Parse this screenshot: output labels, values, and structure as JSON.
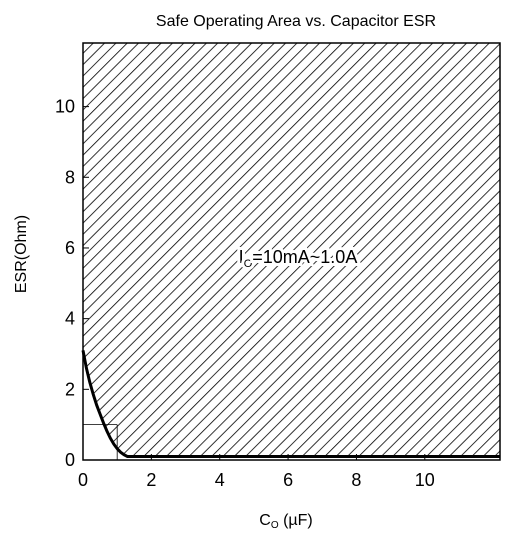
{
  "chart_data": {
    "type": "area",
    "title": "Safe Operating Area vs. Capacitor ESR",
    "xlabel_main": "C",
    "xlabel_sub": "O",
    "xlabel_unit": " (µF)",
    "ylabel": "ESR(Ohm)",
    "xlim": [
      0,
      12.2
    ],
    "ylim": [
      0,
      11.8
    ],
    "x_ticks": [
      0,
      2,
      4,
      6,
      8,
      10
    ],
    "y_ticks": [
      0,
      2,
      4,
      6,
      8,
      10
    ],
    "grid": false,
    "region": {
      "fill": "diagonal-hatch",
      "label_main": "I",
      "label_sub": "O",
      "label_rest": "=10mA~1.0A"
    },
    "boundary_curve": {
      "x": [
        0.0,
        0.1,
        0.2,
        0.3,
        0.4,
        0.5,
        0.6,
        0.7,
        0.8,
        0.9,
        1.0,
        1.1,
        1.2,
        1.3,
        1.4,
        12.2
      ],
      "y": [
        3.1,
        2.6,
        2.2,
        1.85,
        1.55,
        1.3,
        1.05,
        0.82,
        0.62,
        0.45,
        0.32,
        0.22,
        0.15,
        0.1,
        0.1,
        0.1
      ]
    },
    "reference_lines": {
      "h_at_y": 1.0,
      "v_at_x": 1.0
    }
  }
}
